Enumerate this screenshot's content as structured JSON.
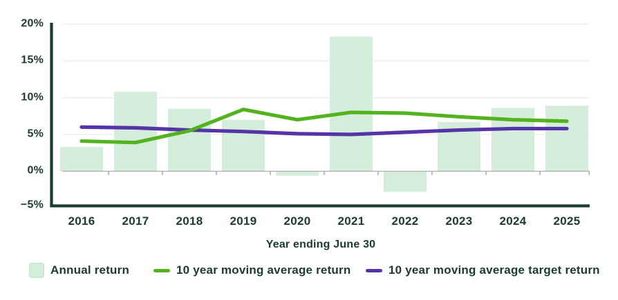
{
  "colors": {
    "background": "#ffffff",
    "bar_fill": "#d5eedc",
    "bar_swatch_border": "#bfe3cb",
    "line_green": "#52b31f",
    "line_purple": "#5633a8",
    "axis": "#1b3a30",
    "text": "#1b3a30",
    "grid": "#ededed",
    "zero_line": "#b3b3b3",
    "tick": "#999999"
  },
  "chart_data": {
    "type": "bar",
    "categories": [
      "2016",
      "2017",
      "2018",
      "2019",
      "2020",
      "2021",
      "2022",
      "2023",
      "2024",
      "2025"
    ],
    "series": [
      {
        "name": "Annual return",
        "type": "bar",
        "color": "#d5eedc",
        "values": [
          3.3,
          10.8,
          8.5,
          7.0,
          -0.6,
          18.3,
          -2.8,
          6.7,
          8.6,
          8.9
        ]
      },
      {
        "name": "10 year moving average return",
        "type": "line",
        "color": "#52b31f",
        "values": [
          4.1,
          3.9,
          5.5,
          8.4,
          7.0,
          8.0,
          7.9,
          7.4,
          7.0,
          6.8
        ]
      },
      {
        "name": "10 year moving average target return",
        "type": "line",
        "color": "#5633a8",
        "values": [
          6.0,
          5.9,
          5.6,
          5.4,
          5.1,
          5.0,
          5.3,
          5.6,
          5.8,
          5.8
        ]
      }
    ],
    "xlabel": "Year ending June 30",
    "ylabel": "",
    "ylim": [
      -5,
      20
    ],
    "y_ticks": [
      20,
      15,
      10,
      5,
      0,
      -5
    ],
    "y_tick_labels": [
      "20%",
      "15%",
      "10%",
      "5%",
      "0%",
      "−5%"
    ],
    "grid": true,
    "legend_position": "bottom"
  }
}
